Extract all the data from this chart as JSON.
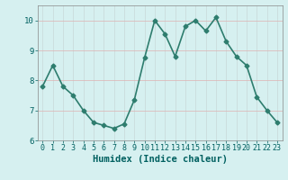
{
  "x": [
    0,
    1,
    2,
    3,
    4,
    5,
    6,
    7,
    8,
    9,
    10,
    11,
    12,
    13,
    14,
    15,
    16,
    17,
    18,
    19,
    20,
    21,
    22,
    23
  ],
  "y": [
    7.8,
    8.5,
    7.8,
    7.5,
    7.0,
    6.6,
    6.5,
    6.4,
    6.55,
    7.35,
    8.75,
    10.0,
    9.55,
    8.8,
    9.8,
    10.0,
    9.65,
    10.1,
    9.3,
    8.8,
    8.5,
    7.45,
    7.0,
    6.6
  ],
  "line_color": "#2e7d6e",
  "marker": "D",
  "marker_size": 2.5,
  "bg_color": "#d6f0f0",
  "grid_color": "#c8d8d8",
  "grid_color_h": "#e0b0b0",
  "xlabel": "Humidex (Indice chaleur)",
  "ylim": [
    6,
    10.5
  ],
  "xlim": [
    -0.5,
    23.5
  ],
  "yticks": [
    6,
    7,
    8,
    9,
    10
  ],
  "xticks": [
    0,
    1,
    2,
    3,
    4,
    5,
    6,
    7,
    8,
    9,
    10,
    11,
    12,
    13,
    14,
    15,
    16,
    17,
    18,
    19,
    20,
    21,
    22,
    23
  ],
  "tick_fontsize": 6.5,
  "xlabel_fontsize": 7.5,
  "line_width": 1.2
}
